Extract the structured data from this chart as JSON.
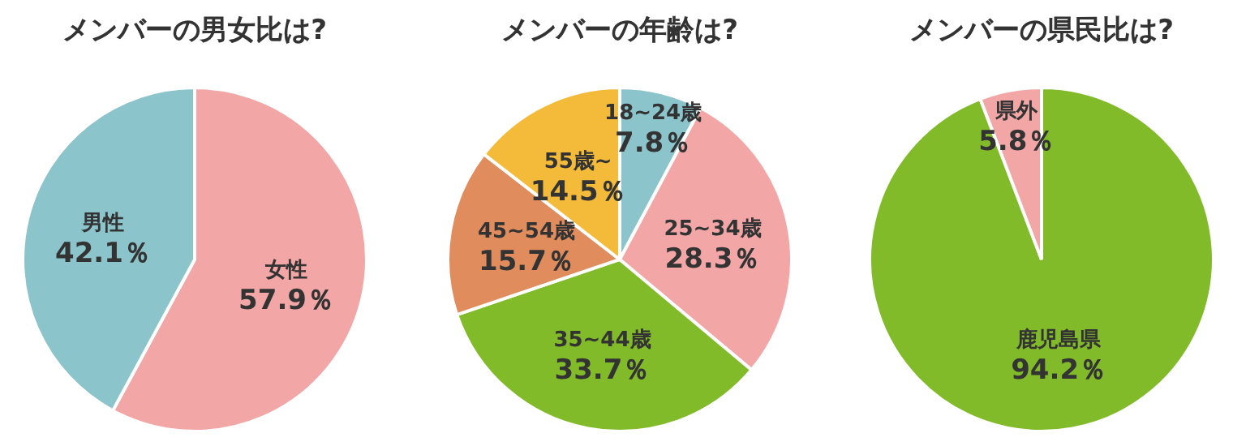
{
  "chart_data": [
    {
      "type": "pie",
      "title": "メンバーの男女比は?",
      "categories": [
        "女性",
        "男性"
      ],
      "values": [
        57.9,
        42.1
      ],
      "colors": [
        "#f2a7a6",
        "#8bc4cb"
      ],
      "value_labels": [
        "57.9％",
        "42.1％"
      ]
    },
    {
      "type": "pie",
      "title": "メンバーの年齢は?",
      "categories": [
        "18~24歳",
        "25~34歳",
        "35~44歳",
        "45~54歳",
        "55歳~"
      ],
      "values": [
        7.8,
        28.3,
        33.7,
        15.7,
        14.5
      ],
      "colors": [
        "#8bc4cb",
        "#f2a7a6",
        "#82bb2a",
        "#e08c5d",
        "#f4bb3a"
      ],
      "value_labels": [
        "7.8％",
        "28.3％",
        "33.7％",
        "15.7％",
        "14.5％"
      ]
    },
    {
      "type": "pie",
      "title": "メンバーの県民比は?",
      "categories": [
        "鹿児島県",
        "県外"
      ],
      "values": [
        94.2,
        5.8
      ],
      "colors": [
        "#82bb2a",
        "#f2a7a6"
      ],
      "value_labels": [
        "94.2％",
        "5.8％"
      ]
    }
  ]
}
